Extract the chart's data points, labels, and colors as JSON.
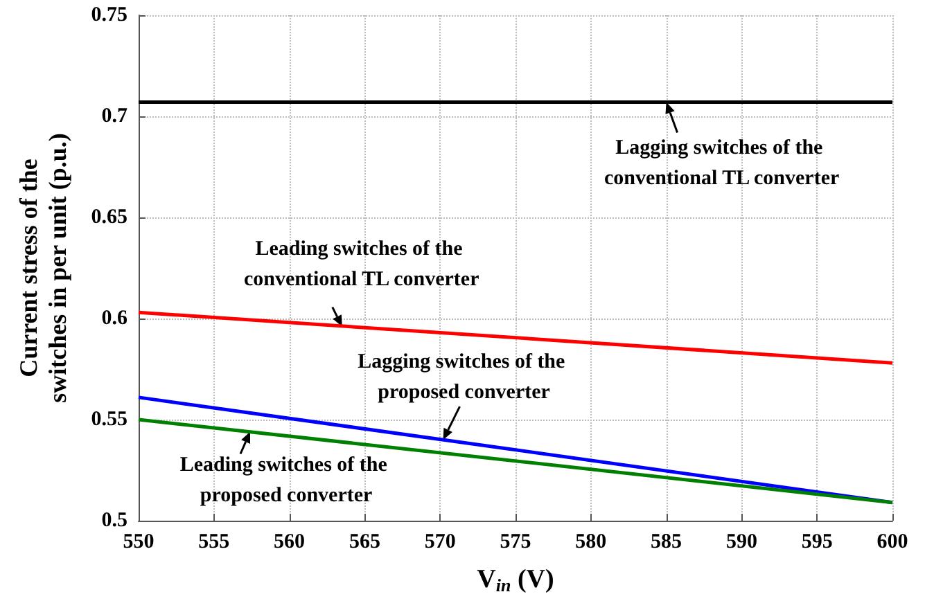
{
  "chart_data": {
    "type": "line",
    "x": [
      550,
      600
    ],
    "xlabel": "V$_{in}$ (V)",
    "ylabel": "Current stress of the switches in per unit (p.u.)",
    "series": [
      {
        "color": "#000000",
        "values": [
          0.707,
          0.707
        ]
      },
      {
        "color": "#ff0000",
        "values": [
          0.603,
          0.578
        ]
      },
      {
        "color": "#0000ff",
        "values": [
          0.561,
          0.509
        ]
      },
      {
        "color": "#008000",
        "values": [
          0.55,
          0.509
        ]
      }
    ],
    "xlim": [
      550,
      600
    ],
    "xticks": [
      550,
      555,
      560,
      565,
      570,
      575,
      580,
      585,
      590,
      595,
      600
    ],
    "ylim": [
      0.5,
      0.75
    ],
    "yticks": [
      0.5,
      0.55,
      0.6,
      0.65,
      0.7,
      0.75
    ],
    "grid": true,
    "marker": "none",
    "line_style": "solid",
    "annotations": [
      {
        "text": "Lagging switches of the conventional TL converter",
        "x": 585,
        "y": 0.707
      },
      {
        "text": "Leading switches of the conventional TL converter",
        "x": 563.5,
        "y": 0.596
      },
      {
        "text": "Lagging switches of the proposed converter",
        "x": 570.2,
        "y": 0.54
      },
      {
        "text": "Leading switches of the proposed converter",
        "x": 557.4,
        "y": 0.544
      }
    ]
  }
}
